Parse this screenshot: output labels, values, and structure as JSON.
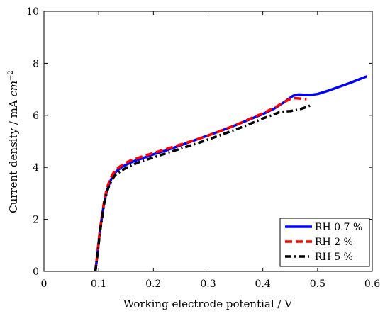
{
  "chart_data": {
    "type": "line",
    "xlabel": "Working electrode potential / V",
    "ylabel_prefix": "Current density / mA ",
    "ylabel_unit": "cm",
    "ylabel_exp": "−2",
    "xlim": [
      0,
      0.6
    ],
    "ylim": [
      0,
      10
    ],
    "x_ticks": [
      0,
      0.1,
      0.2,
      0.3,
      0.4,
      0.5,
      0.6
    ],
    "x_tick_labels": [
      "0",
      "0.1",
      "0.2",
      "0.3",
      "0.4",
      "0.5",
      "0.6"
    ],
    "y_ticks": [
      0,
      2,
      4,
      6,
      8,
      10
    ],
    "y_tick_labels": [
      "0",
      "2",
      "4",
      "6",
      "8",
      "10"
    ],
    "grid": false,
    "legend_position": "bottom-right",
    "series": [
      {
        "name": "RH 0.7 %",
        "color": "#0000ff",
        "dash": "solid",
        "x": [
          0.094,
          0.098,
          0.102,
          0.106,
          0.11,
          0.115,
          0.12,
          0.125,
          0.13,
          0.14,
          0.15,
          0.16,
          0.17,
          0.18,
          0.2,
          0.22,
          0.25,
          0.28,
          0.3,
          0.32,
          0.35,
          0.38,
          0.4,
          0.42,
          0.44,
          0.455,
          0.465,
          0.475,
          0.485,
          0.5,
          0.52,
          0.54,
          0.56,
          0.58,
          0.59
        ],
        "y": [
          0.0,
          0.7,
          1.5,
          2.1,
          2.65,
          3.1,
          3.4,
          3.65,
          3.8,
          3.98,
          4.1,
          4.2,
          4.28,
          4.35,
          4.5,
          4.63,
          4.85,
          5.08,
          5.23,
          5.38,
          5.62,
          5.88,
          6.05,
          6.25,
          6.52,
          6.75,
          6.8,
          6.79,
          6.78,
          6.82,
          6.95,
          7.1,
          7.25,
          7.42,
          7.5
        ]
      },
      {
        "name": "RH 2 %",
        "color": "#ff0000",
        "dash": "dashed",
        "x": [
          0.094,
          0.098,
          0.102,
          0.106,
          0.11,
          0.115,
          0.12,
          0.125,
          0.13,
          0.14,
          0.15,
          0.16,
          0.17,
          0.18,
          0.2,
          0.22,
          0.25,
          0.28,
          0.3,
          0.32,
          0.35,
          0.38,
          0.4,
          0.42,
          0.44,
          0.45,
          0.46,
          0.47,
          0.48
        ],
        "y": [
          0.0,
          0.75,
          1.55,
          2.15,
          2.7,
          3.2,
          3.5,
          3.72,
          3.88,
          4.05,
          4.18,
          4.28,
          4.35,
          4.42,
          4.55,
          4.68,
          4.88,
          5.08,
          5.22,
          5.38,
          5.62,
          5.9,
          6.08,
          6.28,
          6.52,
          6.63,
          6.66,
          6.64,
          6.62
        ]
      },
      {
        "name": "RH 5 %",
        "color": "#000000",
        "dash": "dashdot",
        "x": [
          0.094,
          0.098,
          0.102,
          0.106,
          0.11,
          0.115,
          0.12,
          0.125,
          0.13,
          0.14,
          0.15,
          0.16,
          0.17,
          0.18,
          0.2,
          0.22,
          0.25,
          0.28,
          0.3,
          0.32,
          0.35,
          0.38,
          0.4,
          0.42,
          0.43,
          0.44,
          0.45,
          0.46,
          0.47,
          0.48,
          0.487
        ],
        "y": [
          0.0,
          0.7,
          1.45,
          2.05,
          2.6,
          3.05,
          3.35,
          3.55,
          3.7,
          3.85,
          3.98,
          4.08,
          4.17,
          4.25,
          4.38,
          4.52,
          4.72,
          4.92,
          5.07,
          5.22,
          5.45,
          5.7,
          5.88,
          6.03,
          6.12,
          6.15,
          6.16,
          6.2,
          6.25,
          6.32,
          6.38
        ]
      }
    ]
  }
}
